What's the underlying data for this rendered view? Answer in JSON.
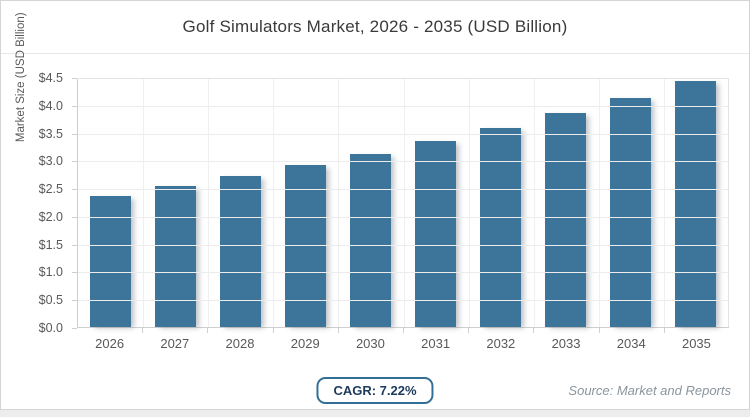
{
  "header": {
    "title": "Golf Simulators Market, 2026 - 2035 (USD Billion)"
  },
  "footer": {
    "cagr_label": "CAGR: 7.22%",
    "source_label": "Source: Market and Reports"
  },
  "colors": {
    "bar_fill": "#3d7499",
    "badge_border": "#336e96",
    "badge_text": "#1e3b5c",
    "grid": "#ececec",
    "axis_text": "#595959"
  },
  "chart_data": {
    "type": "bar",
    "title": "Golf Simulators Market, 2026 - 2035 (USD Billion)",
    "xlabel": "",
    "ylabel": "Market Size (USD Billion)",
    "categories": [
      "2026",
      "2027",
      "2028",
      "2029",
      "2030",
      "2031",
      "2032",
      "2033",
      "2034",
      "2035"
    ],
    "values": [
      2.36,
      2.53,
      2.71,
      2.91,
      3.12,
      3.34,
      3.58,
      3.85,
      4.12,
      4.42
    ],
    "ylim": [
      0,
      4.5
    ],
    "yticks": [
      {
        "label": "$0.0",
        "value": 0.0
      },
      {
        "label": "$0.5",
        "value": 0.5
      },
      {
        "label": "$1.0",
        "value": 1.0
      },
      {
        "label": "$1.5",
        "value": 1.5
      },
      {
        "label": "$2.0",
        "value": 2.0
      },
      {
        "label": "$2.5",
        "value": 2.5
      },
      {
        "label": "$3.0",
        "value": 3.0
      },
      {
        "label": "$3.5",
        "value": 3.5
      },
      {
        "label": "$4.0",
        "value": 4.0
      },
      {
        "label": "$4.5",
        "value": 4.5
      }
    ],
    "grid": true,
    "legend": false,
    "annotations": [
      "CAGR: 7.22%",
      "Source: Market and Reports"
    ]
  }
}
